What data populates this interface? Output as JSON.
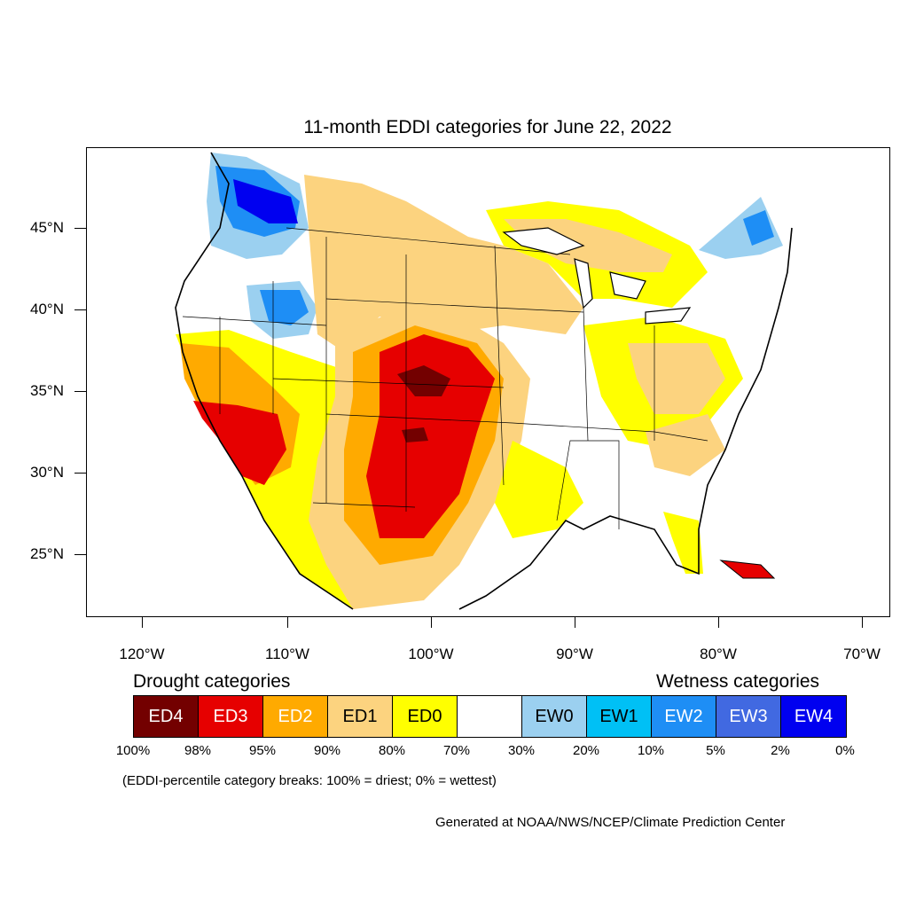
{
  "title": "11-month EDDI categories for June 22, 2022",
  "y_axis": {
    "labels": [
      "45°N",
      "40°N",
      "35°N",
      "30°N",
      "25°N"
    ]
  },
  "x_axis": {
    "labels": [
      "120°W",
      "110°W",
      "100°W",
      "90°W",
      "80°W",
      "70°W"
    ]
  },
  "legend": {
    "drought_heading": "Drought categories",
    "wetness_heading": "Wetness categories",
    "categories": [
      {
        "label": "ED4",
        "color": "#730000",
        "text_color": "#ffffff"
      },
      {
        "label": "ED3",
        "color": "#e60000",
        "text_color": "#ffffff"
      },
      {
        "label": "ED2",
        "color": "#ffaa00",
        "text_color": "#ffffff"
      },
      {
        "label": "ED1",
        "color": "#fcd37f",
        "text_color": "#000000"
      },
      {
        "label": "ED0",
        "color": "#ffff00",
        "text_color": "#000000"
      },
      {
        "label": "",
        "color": "#ffffff",
        "text_color": "#000000"
      },
      {
        "label": "EW0",
        "color": "#9bd0f0",
        "text_color": "#000000"
      },
      {
        "label": "EW1",
        "color": "#00c0f5",
        "text_color": "#000000"
      },
      {
        "label": "EW2",
        "color": "#1e8ef5",
        "text_color": "#ffffff"
      },
      {
        "label": "EW3",
        "color": "#4169e1",
        "text_color": "#ffffff"
      },
      {
        "label": "EW4",
        "color": "#0000f0",
        "text_color": "#ffffff"
      }
    ],
    "breaks": [
      "100%",
      "98%",
      "95%",
      "90%",
      "80%",
      "70%",
      "30%",
      "20%",
      "10%",
      "5%",
      "2%",
      "0%"
    ]
  },
  "note": "(EDDI-percentile category breaks: 100% = driest; 0% = wettest)",
  "credit": "Generated at NOAA/NWS/NCEP/Climate Prediction Center"
}
